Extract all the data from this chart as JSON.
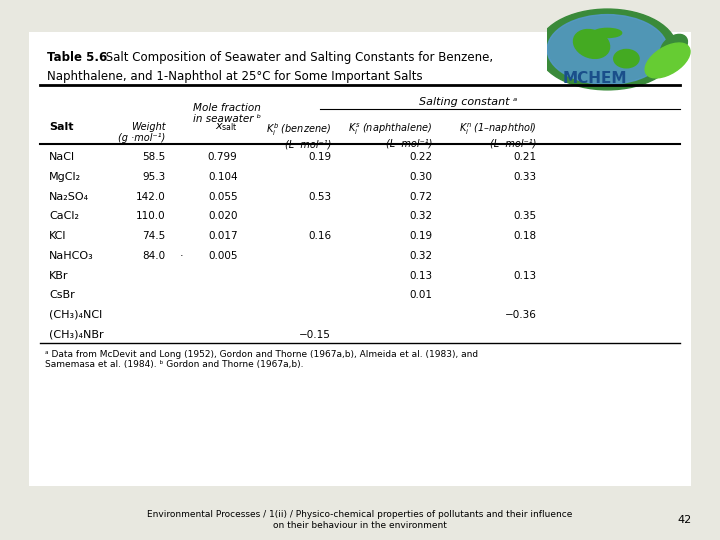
{
  "bg_color": "#e8e8e0",
  "table_bg": "#ffffff",
  "title_bold": "Table 5.6",
  "title_normal": " Salt Composition of Seawater and Salting Constants for Benzene,",
  "title_line2": "Naphthalene, and 1-Naphthol at 25°C for Some Important Salts",
  "salting_header": "Salting constant ᵃ",
  "mole_fraction_header": "Mole fraction\nin seawater ᵇ",
  "col0_header": "Salt",
  "col1_header": "Weight\n(g ·mol⁻¹)",
  "col2_header": "xₛₐₗₜ",
  "col3_header": "Kᵢᵇ (benzene)\n(L ·mol⁻¹)",
  "col4_header": "Kᵢˢ (naphthalene)\n(L ·mol⁻¹)",
  "col5_header": "Kᵢⁿ (1–naphthol)\n(L ·mol⁻¹)",
  "rows": [
    [
      "NaCl",
      "58.5",
      "0.799",
      "0.19",
      "0.22",
      "0.21"
    ],
    [
      "MgCl₂",
      "95.3",
      "0.104",
      "",
      "0.30",
      "0.33"
    ],
    [
      "Na₂SO₄",
      "142.0",
      "0.055",
      "0.53",
      "0.72",
      ""
    ],
    [
      "CaCl₂",
      "110.0",
      "0.020",
      "",
      "0.32",
      "0.35"
    ],
    [
      "KCl",
      "74.5",
      "0.017",
      "0.16",
      "0.19",
      "0.18"
    ],
    [
      "NaHCO₃",
      "84.0",
      "0.005",
      "",
      "0.32",
      ""
    ],
    [
      "KBr",
      "",
      "",
      "",
      "0.13",
      "0.13"
    ],
    [
      "CsBr",
      "",
      "",
      "",
      "0.01",
      ""
    ],
    [
      "(CH₃)₄NCl",
      "",
      "",
      "",
      "",
      "−0.36"
    ],
    [
      "(CH₃)₄NBr",
      "",
      "",
      "−0.15",
      "",
      ""
    ]
  ],
  "footnote_a": "ᵃ Data from McDevit and Long (1952), Gordon and Thorne (1967a,b), Almeida et al. (1983), and\nSamemasa et al. (1984). ᵇ Gordon and Thorne (1967a,b).",
  "footer1": "Environmental Processes / 1(ii) / Physico-chemical properties of pollutants and their influence",
  "footer2": "on their behaviour in the environment",
  "page_num": "42",
  "mchem_color": "#1a4f8a",
  "logo_green_dark": "#3a8a3a",
  "logo_green_light": "#66cc33",
  "logo_blue": "#5599cc"
}
